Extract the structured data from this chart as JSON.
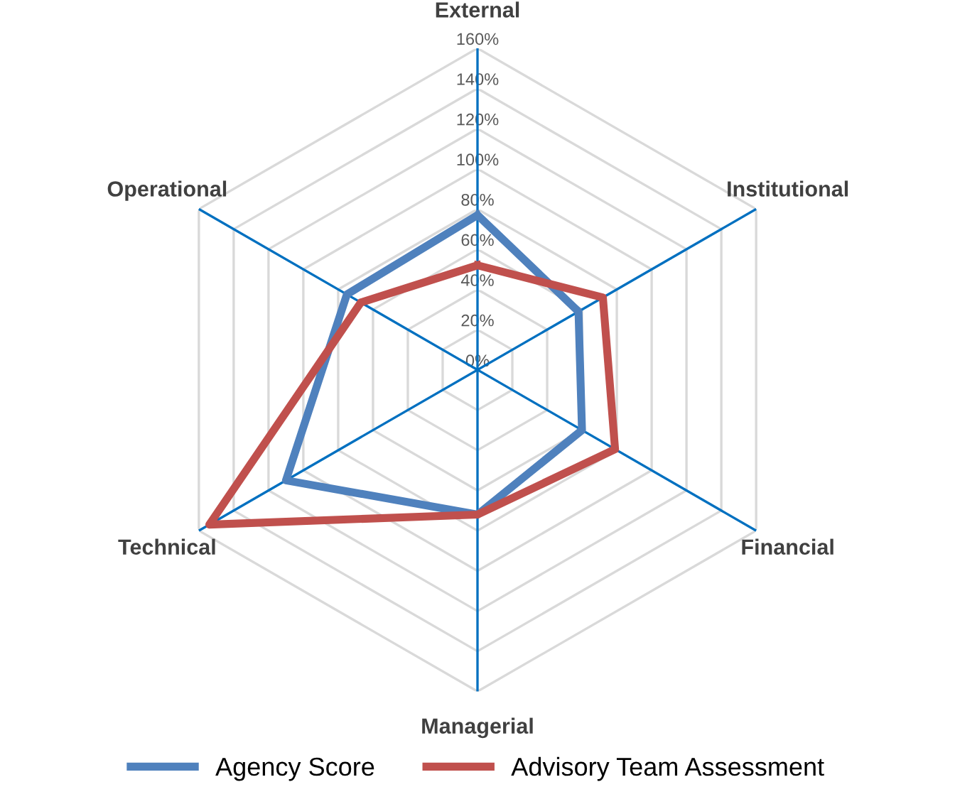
{
  "chart_data": {
    "type": "radar",
    "categories": [
      "External",
      "Institutional",
      "Financial",
      "Managerial",
      "Technical",
      "Operational"
    ],
    "series": [
      {
        "name": "Agency Score",
        "color": "#4f81bd",
        "values": [
          77,
          58,
          60,
          72,
          110,
          75
        ]
      },
      {
        "name": "Advisory Team Assessment",
        "color": "#c0504d",
        "values": [
          52,
          72,
          79,
          72,
          154,
          67
        ]
      }
    ],
    "ylim": [
      0,
      160
    ],
    "yticks": [
      {
        "value": 0,
        "label": "0%"
      },
      {
        "value": 20,
        "label": "20%"
      },
      {
        "value": 40,
        "label": "40%"
      },
      {
        "value": 60,
        "label": "60%"
      },
      {
        "value": 80,
        "label": "80%"
      },
      {
        "value": 100,
        "label": "100%"
      },
      {
        "value": 120,
        "label": "120%"
      },
      {
        "value": 140,
        "label": "140%"
      },
      {
        "value": 160,
        "label": "160%"
      }
    ],
    "grid": true,
    "legend": "bottom"
  }
}
